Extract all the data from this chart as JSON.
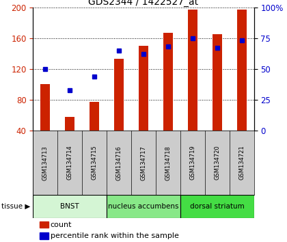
{
  "title": "GDS2344 / 1422527_at",
  "samples": [
    "GSM134713",
    "GSM134714",
    "GSM134715",
    "GSM134716",
    "GSM134717",
    "GSM134718",
    "GSM134719",
    "GSM134720",
    "GSM134721"
  ],
  "counts": [
    100,
    58,
    77,
    133,
    150,
    167,
    197,
    165,
    197
  ],
  "percentile_ranks": [
    50,
    33,
    44,
    65,
    62,
    68,
    75,
    67,
    73
  ],
  "bar_color": "#cc2200",
  "dot_color": "#0000cc",
  "ylim_left": [
    40,
    200
  ],
  "ylim_right": [
    0,
    100
  ],
  "yticks_left": [
    40,
    80,
    120,
    160,
    200
  ],
  "yticks_right": [
    0,
    25,
    50,
    75,
    100
  ],
  "grid_color": "black",
  "tissue_groups": [
    {
      "label": "BNST",
      "indices": [
        0,
        1,
        2
      ],
      "color": "#d4f5d4"
    },
    {
      "label": "nucleus accumbens",
      "indices": [
        3,
        4,
        5
      ],
      "color": "#88e888"
    },
    {
      "label": "dorsal striatum",
      "indices": [
        6,
        7,
        8
      ],
      "color": "#44dd44"
    }
  ],
  "legend_count_label": "count",
  "legend_pct_label": "percentile rank within the sample",
  "tissue_label": "tissue",
  "label_bg_color": "#cccccc",
  "plot_bg_color": "#ffffff",
  "bar_width": 0.4
}
